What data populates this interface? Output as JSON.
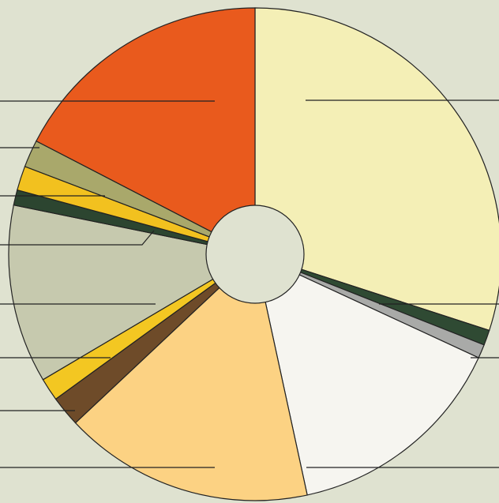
{
  "chart_data": {
    "type": "pie",
    "values": [
      30,
      1,
      0.9,
      14.7,
      16.4,
      2,
      1.5,
      11.7,
      1,
      1.6,
      1.8,
      17.4
    ],
    "colors": [
      "#f4efb6",
      "#2f4a33",
      "#a9aaa8",
      "#f6f5f0",
      "#fcd283",
      "#6e4b29",
      "#f3c722",
      "#c6c9ae",
      "#2c4530",
      "#f2c11f",
      "#a9a86b",
      "#e95a1d"
    ]
  }
}
